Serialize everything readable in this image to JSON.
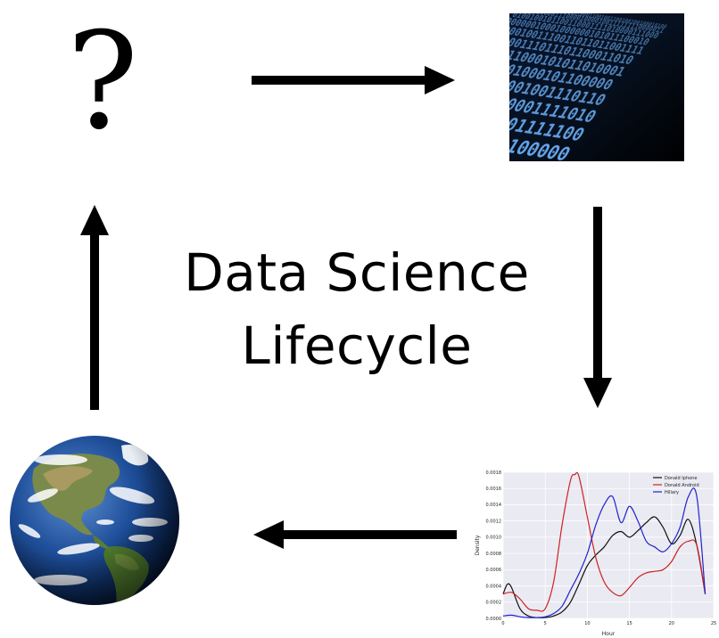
{
  "diagram": {
    "title_line1": "Data Science",
    "title_line2": "Lifecycle",
    "question_mark": "?",
    "icons": {
      "question": "question-mark-icon",
      "data": "binary-code-image",
      "analysis": "density-chart-image",
      "world": "earth-globe-image"
    }
  },
  "chart_data": {
    "type": "line",
    "xlabel": "Hour",
    "ylabel": "Density",
    "xlim": [
      0,
      25
    ],
    "ylim": [
      0,
      0.0018
    ],
    "xticks": [
      "0",
      "5",
      "10",
      "15",
      "20",
      "25"
    ],
    "yticks": [
      "0.0000",
      "0.0002",
      "0.0004",
      "0.0006",
      "0.0008",
      "0.0010",
      "0.0012",
      "0.0014",
      "0.0016",
      "0.0018"
    ],
    "legend_position": "top-right",
    "grid": true,
    "series": [
      {
        "name": "Donald Iphone",
        "color": "#111111",
        "x": [
          0,
          0.5,
          1,
          2,
          3,
          4,
          5,
          6,
          7,
          8,
          9,
          10,
          11,
          12,
          13,
          14,
          15,
          16,
          17,
          18,
          19,
          20,
          21,
          22,
          23,
          24
        ],
        "y": [
          0.0003,
          0.00042,
          0.00038,
          0.00012,
          3e-05,
          1e-05,
          1e-05,
          3e-05,
          8e-05,
          0.0002,
          0.00042,
          0.00065,
          0.00078,
          0.00088,
          0.00102,
          0.00107,
          0.001,
          0.00108,
          0.00118,
          0.00125,
          0.00112,
          0.00092,
          0.00102,
          0.00122,
          0.0009,
          0.0003
        ]
      },
      {
        "name": "Donald Android",
        "color": "#cc2222",
        "x": [
          0,
          1,
          2,
          3,
          4,
          5,
          6,
          7,
          8,
          8.5,
          9,
          10,
          11,
          12,
          13,
          14,
          15,
          16,
          17,
          18,
          19,
          20,
          21,
          22,
          23,
          24
        ],
        "y": [
          0.0003,
          0.00032,
          0.00024,
          0.00012,
          0.0001,
          0.00012,
          0.00045,
          0.00115,
          0.0017,
          0.00177,
          0.00175,
          0.00125,
          0.00075,
          0.00045,
          0.00032,
          0.00028,
          0.00038,
          0.0005,
          0.00056,
          0.00058,
          0.0006,
          0.0007,
          0.00088,
          0.00095,
          0.0009,
          0.0003
        ]
      },
      {
        "name": "Hillary",
        "color": "#2222cc",
        "x": [
          0,
          1,
          2,
          3,
          4,
          5,
          6,
          7,
          8,
          9,
          10,
          11,
          12,
          13,
          14,
          15,
          16,
          17,
          18,
          19,
          20,
          21,
          22,
          23,
          24
        ],
        "y": [
          3e-05,
          4e-05,
          2e-05,
          1e-05,
          1e-05,
          2e-05,
          6e-05,
          0.00015,
          0.00035,
          0.00055,
          0.0008,
          0.00115,
          0.0014,
          0.0015,
          0.00118,
          0.00138,
          0.0012,
          0.00095,
          0.00088,
          0.00082,
          0.00092,
          0.00112,
          0.0015,
          0.0015,
          0.0003
        ]
      }
    ]
  }
}
